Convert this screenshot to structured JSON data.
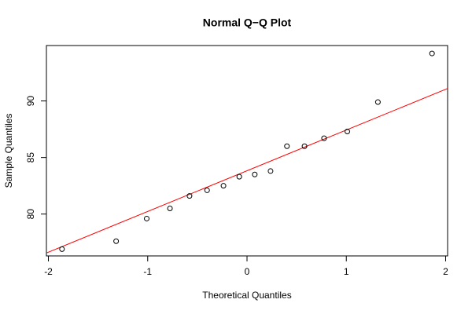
{
  "chart_data": {
    "type": "scatter",
    "title": "Normal Q−Q Plot",
    "x_label": "Theoretical Quantiles",
    "y_label": "Sample Quantiles",
    "x": [
      -1.863,
      -1.318,
      -1.01,
      -0.776,
      -0.579,
      -0.402,
      -0.237,
      -0.078,
      0.078,
      0.237,
      0.402,
      0.579,
      0.776,
      1.01,
      1.318,
      1.863
    ],
    "values": [
      76.9,
      77.6,
      79.6,
      80.5,
      81.6,
      82.1,
      82.5,
      83.3,
      83.5,
      83.8,
      86.0,
      86.0,
      86.7,
      87.3,
      89.9,
      94.2
    ],
    "color": "#000000",
    "qqline": {
      "intercept": 83.83,
      "slope": 3.6,
      "color": "#ff0000"
    },
    "xlim": [
      -2.02,
      2.02
    ],
    "xticks": [
      -2,
      -1,
      0,
      1,
      2
    ],
    "ylim": [
      76.3,
      94.9
    ],
    "yticks": [
      80,
      85,
      90
    ]
  }
}
